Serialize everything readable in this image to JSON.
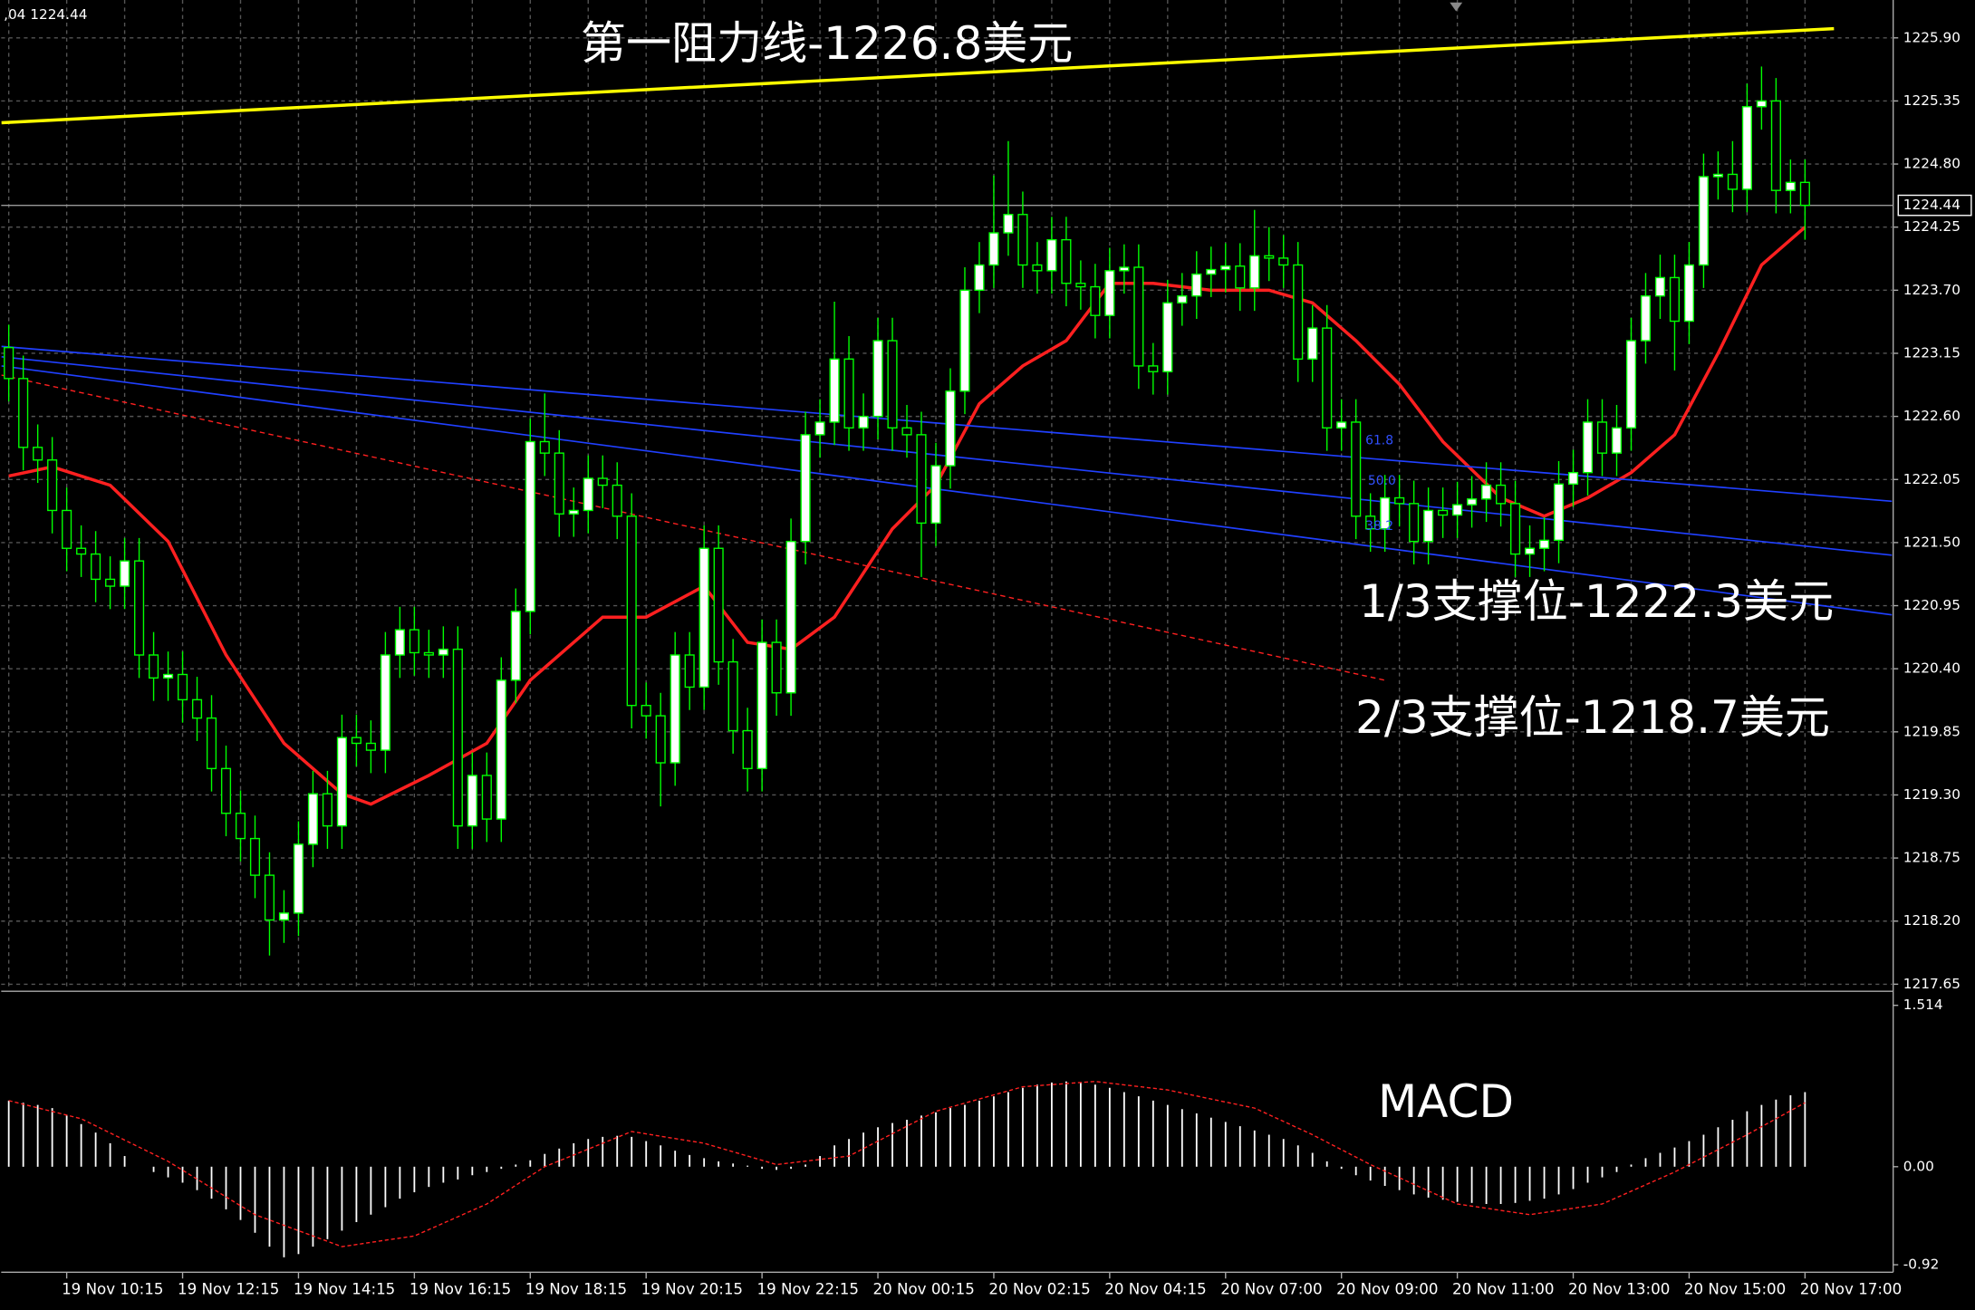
{
  "header": ",04 1224.44",
  "chart_data": [
    {
      "type": "candlestick",
      "categories": [
        null,
        null,
        null,
        null,
        "19 Nov 10:15",
        null,
        null,
        null,
        null,
        null,
        null,
        null,
        "19 Nov 12:15",
        null,
        null,
        null,
        null,
        null,
        null,
        null,
        "19 Nov 14:15",
        null,
        null,
        null,
        null,
        null,
        null,
        null,
        "19 Nov 16:15",
        null,
        null,
        null,
        null,
        null,
        null,
        null,
        "19 Nov 18:15",
        null,
        null,
        null,
        null,
        null,
        null,
        null,
        "19 Nov 20:15",
        null,
        null,
        null,
        null,
        null,
        null,
        null,
        "19 Nov 22:15",
        null,
        null,
        null,
        null,
        null,
        null,
        null,
        "20 Nov 00:15",
        null,
        null,
        null,
        null,
        null,
        null,
        null,
        "20 Nov 02:15",
        null,
        null,
        null,
        null,
        null,
        null,
        null,
        "20 Nov 04:15",
        null,
        null,
        null,
        null,
        null,
        null,
        null,
        "20 Nov 07:00",
        null,
        null,
        null,
        null,
        null,
        null,
        null,
        "20 Nov 09:00",
        null,
        null,
        null,
        null,
        null,
        null,
        null,
        "20 Nov 11:00",
        null,
        null,
        null,
        null,
        null,
        null,
        null,
        "20 Nov 13:00",
        null,
        null,
        null,
        null,
        null,
        null,
        null,
        "20 Nov 15:00",
        null,
        null,
        null,
        null,
        null,
        null,
        null,
        "20 Nov 17:00"
      ],
      "open": [
        1223.2,
        1222.93,
        1222.33,
        1222.22,
        1221.78,
        1221.45,
        1221.4,
        1221.18,
        1221.12,
        1221.34,
        1220.52,
        1220.32,
        1220.35,
        1220.13,
        1219.97,
        1219.53,
        1219.14,
        1218.92,
        1218.6,
        1218.21,
        1218.27,
        1218.87,
        1219.31,
        1219.03,
        1219.8,
        1219.75,
        1219.69,
        1220.52,
        1220.74,
        1220.54,
        1220.52,
        1220.57,
        1219.03,
        1219.47,
        1219.09,
        1220.3,
        1220.9,
        1222.38,
        1222.28,
        1221.75,
        1221.78,
        1222.06,
        1222.0,
        1221.73,
        1220.08,
        1219.99,
        1219.58,
        1220.52,
        1220.24,
        1221.45,
        1220.46,
        1219.86,
        1219.53,
        1220.63,
        1220.19,
        1221.51,
        1222.44,
        1222.55,
        1223.1,
        1222.5,
        1222.6,
        1223.26,
        1222.5,
        1222.44,
        1221.67,
        1222.17,
        1222.82,
        1223.7,
        1223.92,
        1224.2,
        1224.36,
        1223.92,
        1223.87,
        1224.14,
        1223.76,
        1223.73,
        1223.48,
        1223.87,
        1223.9,
        1223.04,
        1222.99,
        1223.59,
        1223.65,
        1223.84,
        1223.88,
        1223.91,
        1223.72,
        1224.0,
        1223.98,
        1223.92,
        1223.1,
        1223.37,
        1222.5,
        1222.55,
        1221.73,
        1221.62,
        1221.89,
        1221.84,
        1221.51,
        1221.78,
        1221.74,
        1221.83,
        1221.88,
        1222.0,
        1221.84,
        1221.4,
        1221.45,
        1221.52,
        1222.01,
        1222.11,
        1222.55,
        1222.28,
        1222.5,
        1223.26,
        1223.65,
        1223.81,
        1223.43,
        1223.92,
        1224.69,
        1224.71,
        1224.58,
        1225.3,
        1225.35,
        1224.57,
        1224.64
      ],
      "high": [
        1223.4,
        1223.13,
        1222.53,
        1222.42,
        1221.98,
        1221.65,
        1221.6,
        1221.38,
        1221.54,
        1221.54,
        1220.72,
        1220.55,
        1220.55,
        1220.33,
        1220.17,
        1219.73,
        1219.34,
        1219.12,
        1218.8,
        1218.47,
        1219.07,
        1219.51,
        1219.51,
        1220.0,
        1220.0,
        1219.95,
        1220.72,
        1220.94,
        1220.94,
        1220.74,
        1220.77,
        1220.77,
        1219.67,
        1219.67,
        1220.5,
        1221.1,
        1222.58,
        1222.8,
        1222.48,
        1221.98,
        1222.26,
        1222.26,
        1222.2,
        1221.93,
        1220.28,
        1220.19,
        1220.72,
        1220.72,
        1221.65,
        1221.65,
        1220.66,
        1220.06,
        1220.83,
        1220.83,
        1221.71,
        1222.64,
        1222.75,
        1223.6,
        1223.3,
        1222.8,
        1223.46,
        1223.46,
        1222.7,
        1222.64,
        1222.37,
        1223.02,
        1223.9,
        1224.12,
        1224.7,
        1225.0,
        1224.56,
        1224.12,
        1224.34,
        1224.34,
        1223.96,
        1223.93,
        1224.07,
        1224.1,
        1224.1,
        1223.24,
        1223.79,
        1223.85,
        1224.04,
        1224.08,
        1224.11,
        1224.11,
        1224.4,
        1224.25,
        1224.18,
        1224.12,
        1223.57,
        1223.57,
        1222.75,
        1222.75,
        1221.93,
        1222.09,
        1222.09,
        1222.04,
        1221.98,
        1221.98,
        1222.03,
        1222.08,
        1222.2,
        1222.2,
        1222.04,
        1221.65,
        1221.72,
        1222.21,
        1222.31,
        1222.75,
        1222.75,
        1222.7,
        1223.46,
        1223.85,
        1224.01,
        1224.01,
        1224.12,
        1224.89,
        1224.91,
        1225.0,
        1225.5,
        1225.65,
        1225.55,
        1224.84,
        1224.84
      ],
      "low": [
        1222.73,
        1222.13,
        1222.02,
        1221.58,
        1221.25,
        1221.2,
        1220.98,
        1220.92,
        1220.92,
        1220.32,
        1220.12,
        1220.12,
        1219.93,
        1219.77,
        1219.33,
        1218.94,
        1218.72,
        1218.4,
        1217.9,
        1218.01,
        1218.07,
        1218.67,
        1218.83,
        1218.83,
        1219.55,
        1219.49,
        1219.49,
        1220.32,
        1220.34,
        1220.32,
        1220.32,
        1218.83,
        1218.83,
        1218.89,
        1218.89,
        1220.1,
        1220.7,
        1222.08,
        1221.55,
        1221.55,
        1221.58,
        1221.8,
        1221.53,
        1219.88,
        1219.79,
        1219.2,
        1219.38,
        1220.04,
        1220.04,
        1220.26,
        1219.66,
        1219.33,
        1219.33,
        1219.99,
        1219.99,
        1221.31,
        1222.24,
        1222.35,
        1222.3,
        1222.3,
        1222.4,
        1222.3,
        1222.24,
        1221.2,
        1221.47,
        1221.97,
        1222.62,
        1223.5,
        1223.72,
        1224.0,
        1223.72,
        1223.67,
        1223.67,
        1223.56,
        1223.53,
        1223.28,
        1223.28,
        1223.67,
        1222.84,
        1222.79,
        1222.79,
        1223.39,
        1223.45,
        1223.64,
        1223.68,
        1223.52,
        1223.52,
        1223.78,
        1223.72,
        1222.9,
        1222.9,
        1222.3,
        1222.3,
        1221.53,
        1221.42,
        1221.42,
        1221.64,
        1221.31,
        1221.31,
        1221.54,
        1221.54,
        1221.63,
        1221.68,
        1221.64,
        1221.2,
        1221.2,
        1221.25,
        1221.32,
        1221.81,
        1221.91,
        1222.08,
        1222.08,
        1222.3,
        1223.06,
        1223.45,
        1223.0,
        1223.23,
        1223.72,
        1224.49,
        1224.38,
        1224.38,
        1225.1,
        1224.37,
        1224.37,
        1224.14
      ],
      "close": [
        1222.93,
        1222.33,
        1222.22,
        1221.78,
        1221.45,
        1221.4,
        1221.18,
        1221.12,
        1221.34,
        1220.52,
        1220.32,
        1220.35,
        1220.13,
        1219.97,
        1219.53,
        1219.14,
        1218.92,
        1218.6,
        1218.21,
        1218.27,
        1218.87,
        1219.31,
        1219.03,
        1219.8,
        1219.75,
        1219.69,
        1220.52,
        1220.74,
        1220.54,
        1220.52,
        1220.57,
        1219.03,
        1219.47,
        1219.09,
        1220.3,
        1220.9,
        1222.38,
        1222.28,
        1221.75,
        1221.78,
        1222.06,
        1222.0,
        1221.73,
        1220.08,
        1219.99,
        1219.58,
        1220.52,
        1220.24,
        1221.45,
        1220.46,
        1219.86,
        1219.53,
        1220.63,
        1220.19,
        1221.51,
        1222.44,
        1222.55,
        1223.1,
        1222.5,
        1222.6,
        1223.26,
        1222.5,
        1222.44,
        1221.67,
        1222.17,
        1222.82,
        1223.7,
        1223.92,
        1224.2,
        1224.36,
        1223.92,
        1223.87,
        1224.14,
        1223.76,
        1223.73,
        1223.48,
        1223.87,
        1223.9,
        1223.04,
        1222.99,
        1223.59,
        1223.65,
        1223.84,
        1223.88,
        1223.91,
        1223.72,
        1224.0,
        1223.98,
        1223.92,
        1223.1,
        1223.37,
        1222.5,
        1222.55,
        1221.73,
        1221.62,
        1221.89,
        1221.84,
        1221.51,
        1221.78,
        1221.74,
        1221.83,
        1221.88,
        1222.0,
        1221.84,
        1221.4,
        1221.45,
        1221.52,
        1222.01,
        1222.11,
        1222.55,
        1222.28,
        1222.5,
        1223.26,
        1223.65,
        1223.81,
        1223.43,
        1223.92,
        1224.69,
        1224.71,
        1224.58,
        1225.3,
        1225.35,
        1224.57,
        1224.64,
        1224.44
      ],
      "up_color": "#ffffff",
      "down_color": "#000000",
      "wick_color": "#00ff00",
      "ylim": [
        1217.61,
        1226.23
      ],
      "yticks": [
        {
          "value": 1225.9,
          "label": "1225.90"
        },
        1225.35,
        {
          "value": 1224.8,
          "label": "1224.80"
        },
        1224.25,
        {
          "value": 1223.7,
          "label": "1223.70"
        },
        1223.15,
        {
          "value": 1222.6,
          "label": "1222.60"
        },
        1222.05,
        {
          "value": 1221.5,
          "label": "1221.50"
        },
        1220.95,
        {
          "value": 1220.4,
          "label": "1220.40"
        },
        1219.85,
        {
          "value": 1219.3,
          "label": "1219.30"
        },
        1218.75,
        {
          "value": 1218.2,
          "label": "1218.20"
        },
        1217.65
      ],
      "grid": true,
      "last_price": 1224.44,
      "lines": [
        {
          "color": "#ff2020",
          "style": "solid",
          "x": [
            0,
            3,
            7,
            11,
            15,
            19,
            23,
            25,
            29,
            33,
            36,
            41,
            44,
            48,
            51,
            54,
            57,
            61,
            64,
            67,
            70,
            73,
            76,
            79,
            83,
            87,
            90,
            93,
            96,
            99,
            103,
            106,
            109,
            112,
            115,
            118,
            121,
            124
          ],
          "values": [
            1222.08,
            1222.16,
            1222.0,
            1221.51,
            1220.52,
            1219.75,
            1219.31,
            1219.22,
            1219.47,
            1219.75,
            1220.3,
            1220.85,
            1220.85,
            1221.12,
            1220.63,
            1220.57,
            1220.85,
            1221.62,
            1222.0,
            1222.71,
            1223.04,
            1223.26,
            1223.76,
            1223.76,
            1223.7,
            1223.7,
            1223.59,
            1223.26,
            1222.88,
            1222.38,
            1221.89,
            1221.73,
            1221.89,
            1222.11,
            1222.44,
            1223.15,
            1223.92,
            1224.25
          ]
        },
        {
          "color": "#ffff00",
          "style": "solid",
          "x": [
            -0.5,
            126
          ],
          "values": [
            1225.16,
            1225.98
          ]
        },
        {
          "color": "#2040ff",
          "style": "solid",
          "x": [
            -0.5,
            130
          ],
          "values": [
            1223.21,
            1221.86
          ]
        },
        {
          "color": "#2040ff",
          "style": "solid",
          "x": [
            -0.5,
            130
          ],
          "values": [
            1223.12,
            1221.39
          ]
        },
        {
          "color": "#2040ff",
          "style": "solid",
          "x": [
            -0.5,
            130
          ],
          "values": [
            1223.04,
            1220.87
          ]
        },
        {
          "color": "#ff2020",
          "style": "dashed",
          "x": [
            -0.5,
            95
          ],
          "values": [
            1222.96,
            1220.3
          ]
        }
      ],
      "annotations": [
        {
          "text": "第一阻力线-1226.8美元"
        },
        {
          "text": "1/3支撑位-1222.3美元"
        },
        {
          "text": "2/3支撑位-1218.7美元"
        },
        {
          "text": "61.8"
        },
        {
          "text": "50.0"
        },
        {
          "text": "38.2"
        }
      ]
    },
    {
      "type": "macd",
      "title": "MACD",
      "color": "#ffffff",
      "values": [
        0.62,
        0.6,
        0.58,
        0.55,
        0.48,
        0.4,
        0.32,
        0.22,
        0.1,
        0.0,
        -0.05,
        -0.1,
        -0.15,
        -0.22,
        -0.3,
        -0.4,
        -0.5,
        -0.62,
        -0.75,
        -0.85,
        -0.82,
        -0.75,
        -0.68,
        -0.6,
        -0.52,
        -0.45,
        -0.38,
        -0.3,
        -0.24,
        -0.19,
        -0.15,
        -0.12,
        -0.08,
        -0.05,
        -0.02,
        0.02,
        0.06,
        0.12,
        0.17,
        0.22,
        0.26,
        0.28,
        0.29,
        0.28,
        0.24,
        0.2,
        0.15,
        0.11,
        0.08,
        0.05,
        0.03,
        0.01,
        -0.02,
        -0.03,
        -0.02,
        0.02,
        0.1,
        0.2,
        0.26,
        0.32,
        0.37,
        0.41,
        0.44,
        0.48,
        0.51,
        0.55,
        0.58,
        0.62,
        0.66,
        0.7,
        0.74,
        0.77,
        0.79,
        0.8,
        0.79,
        0.77,
        0.74,
        0.7,
        0.66,
        0.62,
        0.58,
        0.54,
        0.5,
        0.46,
        0.42,
        0.38,
        0.34,
        0.3,
        0.26,
        0.2,
        0.13,
        0.05,
        -0.02,
        -0.08,
        -0.13,
        -0.18,
        -0.22,
        -0.26,
        -0.29,
        -0.31,
        -0.33,
        -0.34,
        -0.35,
        -0.35,
        -0.34,
        -0.32,
        -0.3,
        -0.26,
        -0.21,
        -0.15,
        -0.1,
        -0.05,
        0.02,
        0.08,
        0.13,
        0.18,
        0.24,
        0.3,
        0.37,
        0.44,
        0.52,
        0.58,
        0.63,
        0.67,
        0.7
      ],
      "signal": {
        "color": "#ff2020",
        "style": "dashed",
        "x": [
          0,
          5,
          11,
          17,
          23,
          28,
          33,
          37,
          43,
          48,
          53,
          58,
          64,
          70,
          75,
          80,
          86,
          90,
          94,
          100,
          105,
          110,
          115,
          120,
          124
        ],
        "values": [
          0.62,
          0.45,
          0.05,
          -0.45,
          -0.75,
          -0.65,
          -0.35,
          0.0,
          0.33,
          0.22,
          0.02,
          0.1,
          0.52,
          0.75,
          0.8,
          0.72,
          0.55,
          0.3,
          0.02,
          -0.35,
          -0.45,
          -0.35,
          -0.05,
          0.3,
          0.6
        ]
      },
      "ylim": [
        -0.99,
        1.61
      ],
      "yticks": [
        1.514,
        {
          "value": 0,
          "label": "0.00"
        },
        -0.92
      ]
    }
  ]
}
